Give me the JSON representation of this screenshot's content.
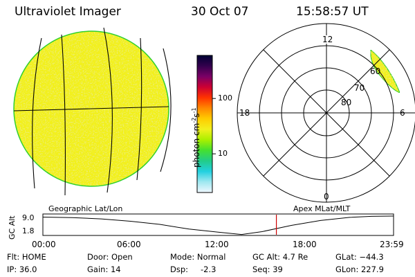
{
  "header": {
    "instrument": "Ultraviolet Imager",
    "date": "30 Oct 07",
    "time": "15:58:57 UT"
  },
  "colors": {
    "fill": "#f2f01e",
    "disk_edge": "#2fd02f",
    "grid": "#000000",
    "track_marker": "#cc0000"
  },
  "earth_view": {
    "caption": "Geographic Lat/Lon"
  },
  "colorbar": {
    "unit": "photon cm",
    "unit_sup1": "-2",
    "unit_mid": "s",
    "unit_sup2": "-1",
    "scale": "log",
    "range": [
      2,
      600
    ],
    "ticks": [
      {
        "value": 100,
        "label": "100"
      },
      {
        "value": 10,
        "label": "10"
      }
    ],
    "stops": [
      "#000033",
      "#33004d",
      "#7a0066",
      "#cc0033",
      "#ff3300",
      "#ff8800",
      "#ffcc00",
      "#f2f01e",
      "#aaf000",
      "#44e030",
      "#22cc88",
      "#22d0e0",
      "#a0e8f0",
      "#f0f8ff"
    ]
  },
  "polar_plot": {
    "caption": "Apex MLat/MLT",
    "lat_labels": [
      "80",
      "70",
      "60"
    ],
    "mlt_labels": {
      "top": "12",
      "left": "18",
      "right": "6",
      "bottom": "0"
    }
  },
  "altitude_track": {
    "y_axis_label": "GC Alt",
    "y_ticks": [
      "9.0",
      "1.8"
    ],
    "y_range": [
      1.8,
      9.0
    ],
    "x_ticks": [
      "00:00",
      "06:00",
      "12:00",
      "18:00",
      "23:59"
    ],
    "current_time_hours": 15.98,
    "curve": [
      [
        0,
        8.6
      ],
      [
        2,
        8.4
      ],
      [
        4,
        7.9
      ],
      [
        6,
        7.0
      ],
      [
        8,
        5.8
      ],
      [
        10,
        4.0
      ],
      [
        12,
        2.8
      ],
      [
        13.6,
        1.9
      ],
      [
        15,
        3.0
      ],
      [
        17,
        5.4
      ],
      [
        19,
        7.3
      ],
      [
        21,
        8.5
      ],
      [
        22.5,
        8.9
      ],
      [
        23.98,
        9.0
      ]
    ]
  },
  "status": {
    "flt": "Flt: HOME",
    "ip": "IP: 36.0",
    "door": "Door: Open",
    "gain": "Gain: 14",
    "mode": "Mode: Normal",
    "dsp_label": "Dsp:",
    "dsp_value": "-2.3",
    "gc_alt": "GC Alt: 4.7 Re",
    "seq": "Seq: 39",
    "glat": "GLat: −44.3",
    "glon": "GLon: 227.9"
  }
}
